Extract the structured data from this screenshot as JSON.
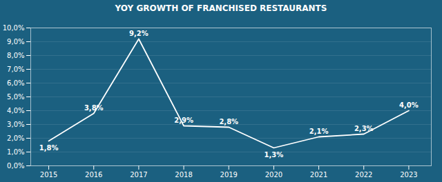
{
  "chart_data": {
    "type": "line",
    "title": "YOY GROWTH OF FRANCHISED RESTAURANTS",
    "x": [
      2015,
      2016,
      2017,
      2018,
      2019,
      2020,
      2021,
      2022,
      2023
    ],
    "values": [
      1.8,
      3.8,
      9.2,
      2.9,
      2.8,
      1.3,
      2.1,
      2.3,
      4.0
    ],
    "value_labels": [
      "1,8%",
      "3,8%",
      "9,2%",
      "2,9%",
      "2,8%",
      "1,3%",
      "2,1%",
      "2,3%",
      "4,0%"
    ],
    "color": "#ffffff",
    "xlim": [
      2014.6,
      2023.5
    ],
    "xticks": [
      2015,
      2016,
      2017,
      2018,
      2019,
      2020,
      2021,
      2022,
      2023
    ],
    "ylim": [
      0,
      10
    ],
    "yticks": [
      {
        "value": 0,
        "label": "0,0%"
      },
      {
        "value": 1.0,
        "label": "1,0%"
      },
      {
        "value": 2.0,
        "label": "2,0%"
      },
      {
        "value": 3.0,
        "label": "3,0%"
      },
      {
        "value": 4.0,
        "label": "4,0%"
      },
      {
        "value": 5.0,
        "label": "5,0%"
      },
      {
        "value": 6.0,
        "label": "6,0%"
      },
      {
        "value": 7.0,
        "label": "7,0%"
      },
      {
        "value": 8.0,
        "label": "8,0%"
      },
      {
        "value": 9.0,
        "label": "9,0%"
      },
      {
        "value": 10.0,
        "label": "10,0%"
      }
    ],
    "grid": true,
    "data_labels": true
  }
}
